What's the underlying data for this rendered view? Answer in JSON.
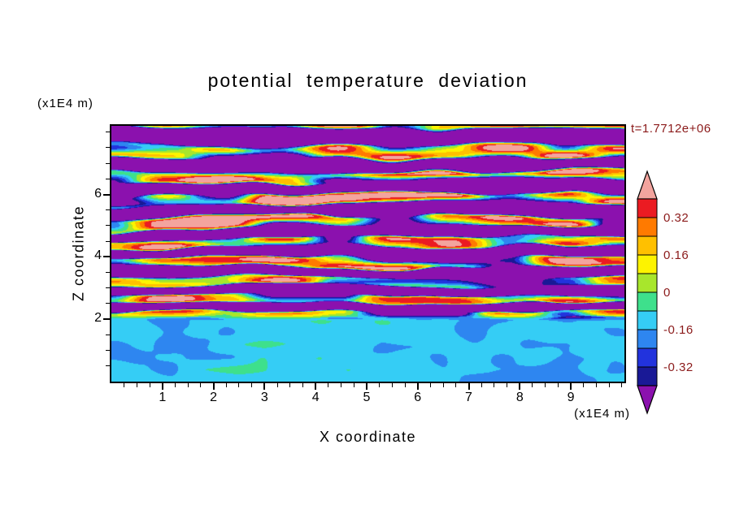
{
  "title": "potential temperature deviation",
  "time_label": "t=1.7712e+06",
  "time_label_color": "#8B1A1A",
  "axes": {
    "x": {
      "label": "X coordinate",
      "unit": "(x1E4 m)",
      "range": [
        0,
        10.05
      ],
      "ticks": [
        1,
        2,
        3,
        4,
        5,
        6,
        7,
        8,
        9
      ],
      "minor_step": 0.25
    },
    "z": {
      "label": "Z coordinate",
      "unit": "(x1E4 m)",
      "range": [
        0,
        8.2
      ],
      "ticks": [
        2,
        4,
        6
      ],
      "minor_step": 0.5
    }
  },
  "chart_data": {
    "type": "heatmap",
    "title": "potential temperature deviation",
    "xlabel": "X coordinate (x1E4 m)",
    "ylabel": "Z coordinate (x1E4 m)",
    "x_range": [
      0,
      10.05
    ],
    "z_range": [
      0,
      8.2
    ],
    "time_label": "t=1.7712e+06",
    "contour_interval": 0.08,
    "level_edges": [
      -0.4,
      -0.32,
      -0.24,
      -0.16,
      -0.08,
      0,
      0.08,
      0.16,
      0.24,
      0.32,
      0.4
    ],
    "bin_colors": [
      "#8B11AE",
      "#191996",
      "#2233DD",
      "#2E86F0",
      "#35CDF5",
      "#3EE08C",
      "#A8E62C",
      "#FDF300",
      "#FFC000",
      "#FF7A00",
      "#EB1B22",
      "#F3A49E"
    ],
    "colorbar_labels": [
      "0.32",
      "0.16",
      "0",
      "-0.16",
      "-0.32"
    ],
    "colorbar_label_color": "#8B1A1A",
    "field_description": "Stratified turbulence: above z=2 (x1E4 m) alternating horizontal layers of strong positive deviation (pink, >0.40) and strong negative deviation (purple, <-0.40) with dark-blue bands, layers thinning toward z=2, and thin red/orange/yellow/cyan filaments along layer interfaces; below z=2 the field is weakly negative (spring green, -0.08..0) with patches of weakly positive deviation (yellow-green, 0..0.08) and a thin positive line right at the interface.",
    "field_model": {
      "band_pairs": 9,
      "band_amplitude": 0.56,
      "band_phase": 0.9,
      "band_sharpness": 2.8,
      "warp_amplitudes": [
        2.0,
        0.9
      ],
      "streak_amplitude": 1.6,
      "negative_bias": 0.1,
      "positive_bias_top": 0.05,
      "lower_mean": -0.015,
      "lower_amplitudes": [
        0.16,
        0.04
      ],
      "interface_line_z": 2.08,
      "interface_line_amplitude": 0.1,
      "blend_zone": [
        1.95,
        2.3
      ],
      "seeds": {
        "warp_large": 11,
        "warp_small": 23,
        "streak": 37,
        "lower_large": 51,
        "lower_small": 67,
        "interface": 71
      }
    }
  }
}
